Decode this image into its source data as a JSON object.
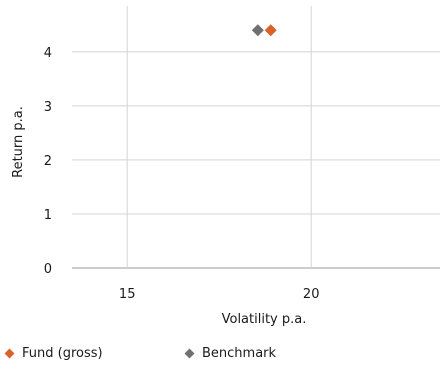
{
  "chart_data": {
    "type": "scatter",
    "xlabel": "Volatility p.a.",
    "ylabel": "Return p.a.",
    "xlim": [
      13.5,
      23.5
    ],
    "ylim": [
      0,
      4.7
    ],
    "x_ticks": [
      15,
      20
    ],
    "y_ticks": [
      0,
      1,
      2,
      3,
      4
    ],
    "grid": true,
    "legend_position": "bottom-left",
    "series": [
      {
        "name": "Fund (gross)",
        "color": "#d9622b",
        "marker": "diamond",
        "points": [
          {
            "x": 18.9,
            "y": 4.4
          }
        ]
      },
      {
        "name": "Benchmark",
        "color": "#707070",
        "marker": "diamond",
        "points": [
          {
            "x": 18.55,
            "y": 4.4
          }
        ]
      }
    ]
  }
}
